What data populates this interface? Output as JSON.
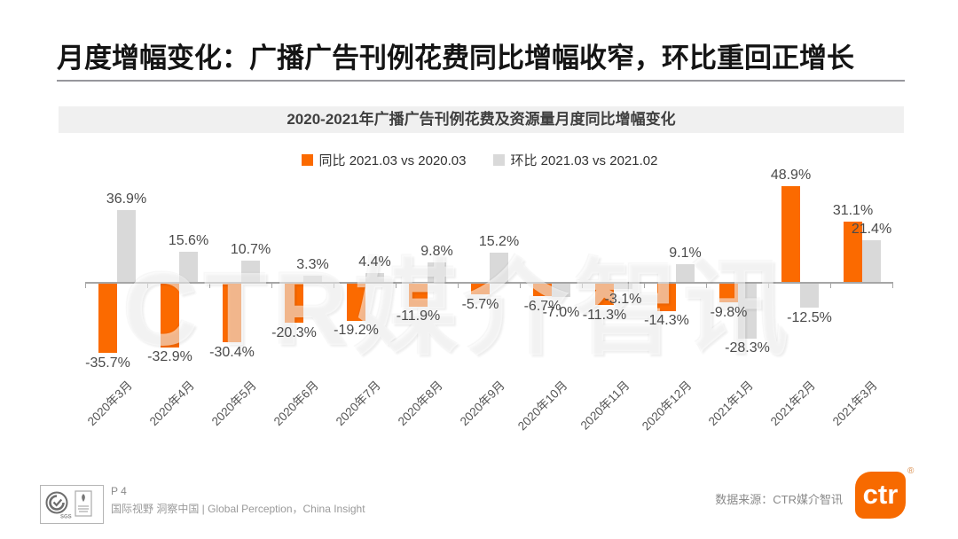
{
  "page_title": "月度增幅变化：广播广告刊例花费同比增幅收窄，环比重回正增长",
  "chart": {
    "title": "2020-2021年广播广告刊例花费及资源量月度同比增幅变化",
    "watermark": "CTR媒介智讯"
  },
  "chart_data": {
    "type": "bar",
    "title": "2020-2021年广播广告刊例花费及资源量月度同比增幅变化",
    "categories": [
      "2020年3月",
      "2020年4月",
      "2020年5月",
      "2020年6月",
      "2020年7月",
      "2020年8月",
      "2020年9月",
      "2020年10月",
      "2020年11月",
      "2020年12月",
      "2021年1月",
      "2021年2月",
      "2021年3月"
    ],
    "series": [
      {
        "name": "同比 2021.03 vs 2020.03",
        "color": "#fb6a00",
        "values": [
          -35.7,
          -32.9,
          -30.4,
          -20.3,
          -19.2,
          -11.9,
          -5.7,
          -6.7,
          -11.3,
          -14.3,
          -9.8,
          48.9,
          31.1
        ]
      },
      {
        "name": "环比 2021.03 vs 2021.02",
        "color": "#d9d9d9",
        "values": [
          36.9,
          15.6,
          10.7,
          3.3,
          4.4,
          9.8,
          15.2,
          -7.0,
          -3.1,
          9.1,
          -28.3,
          -12.5,
          21.4
        ]
      }
    ],
    "value_suffix": "%",
    "ylim": [
      -40,
      55
    ],
    "grid": false,
    "legend_position": "top",
    "xlabel": "",
    "ylabel": ""
  },
  "footer": {
    "page_number": "P 4",
    "tagline": "国际视野 洞察中国 | Global Perception，China Insight",
    "datasource_label": "数据来源：CTR媒介智讯",
    "logo_text": "ctr",
    "registered_mark": "®"
  },
  "colors": {
    "accent_orange": "#fb6a00",
    "bar_gray": "#d9d9d9",
    "title_band_bg": "#f0f0f0",
    "axis_gray": "#a6a6a6"
  }
}
